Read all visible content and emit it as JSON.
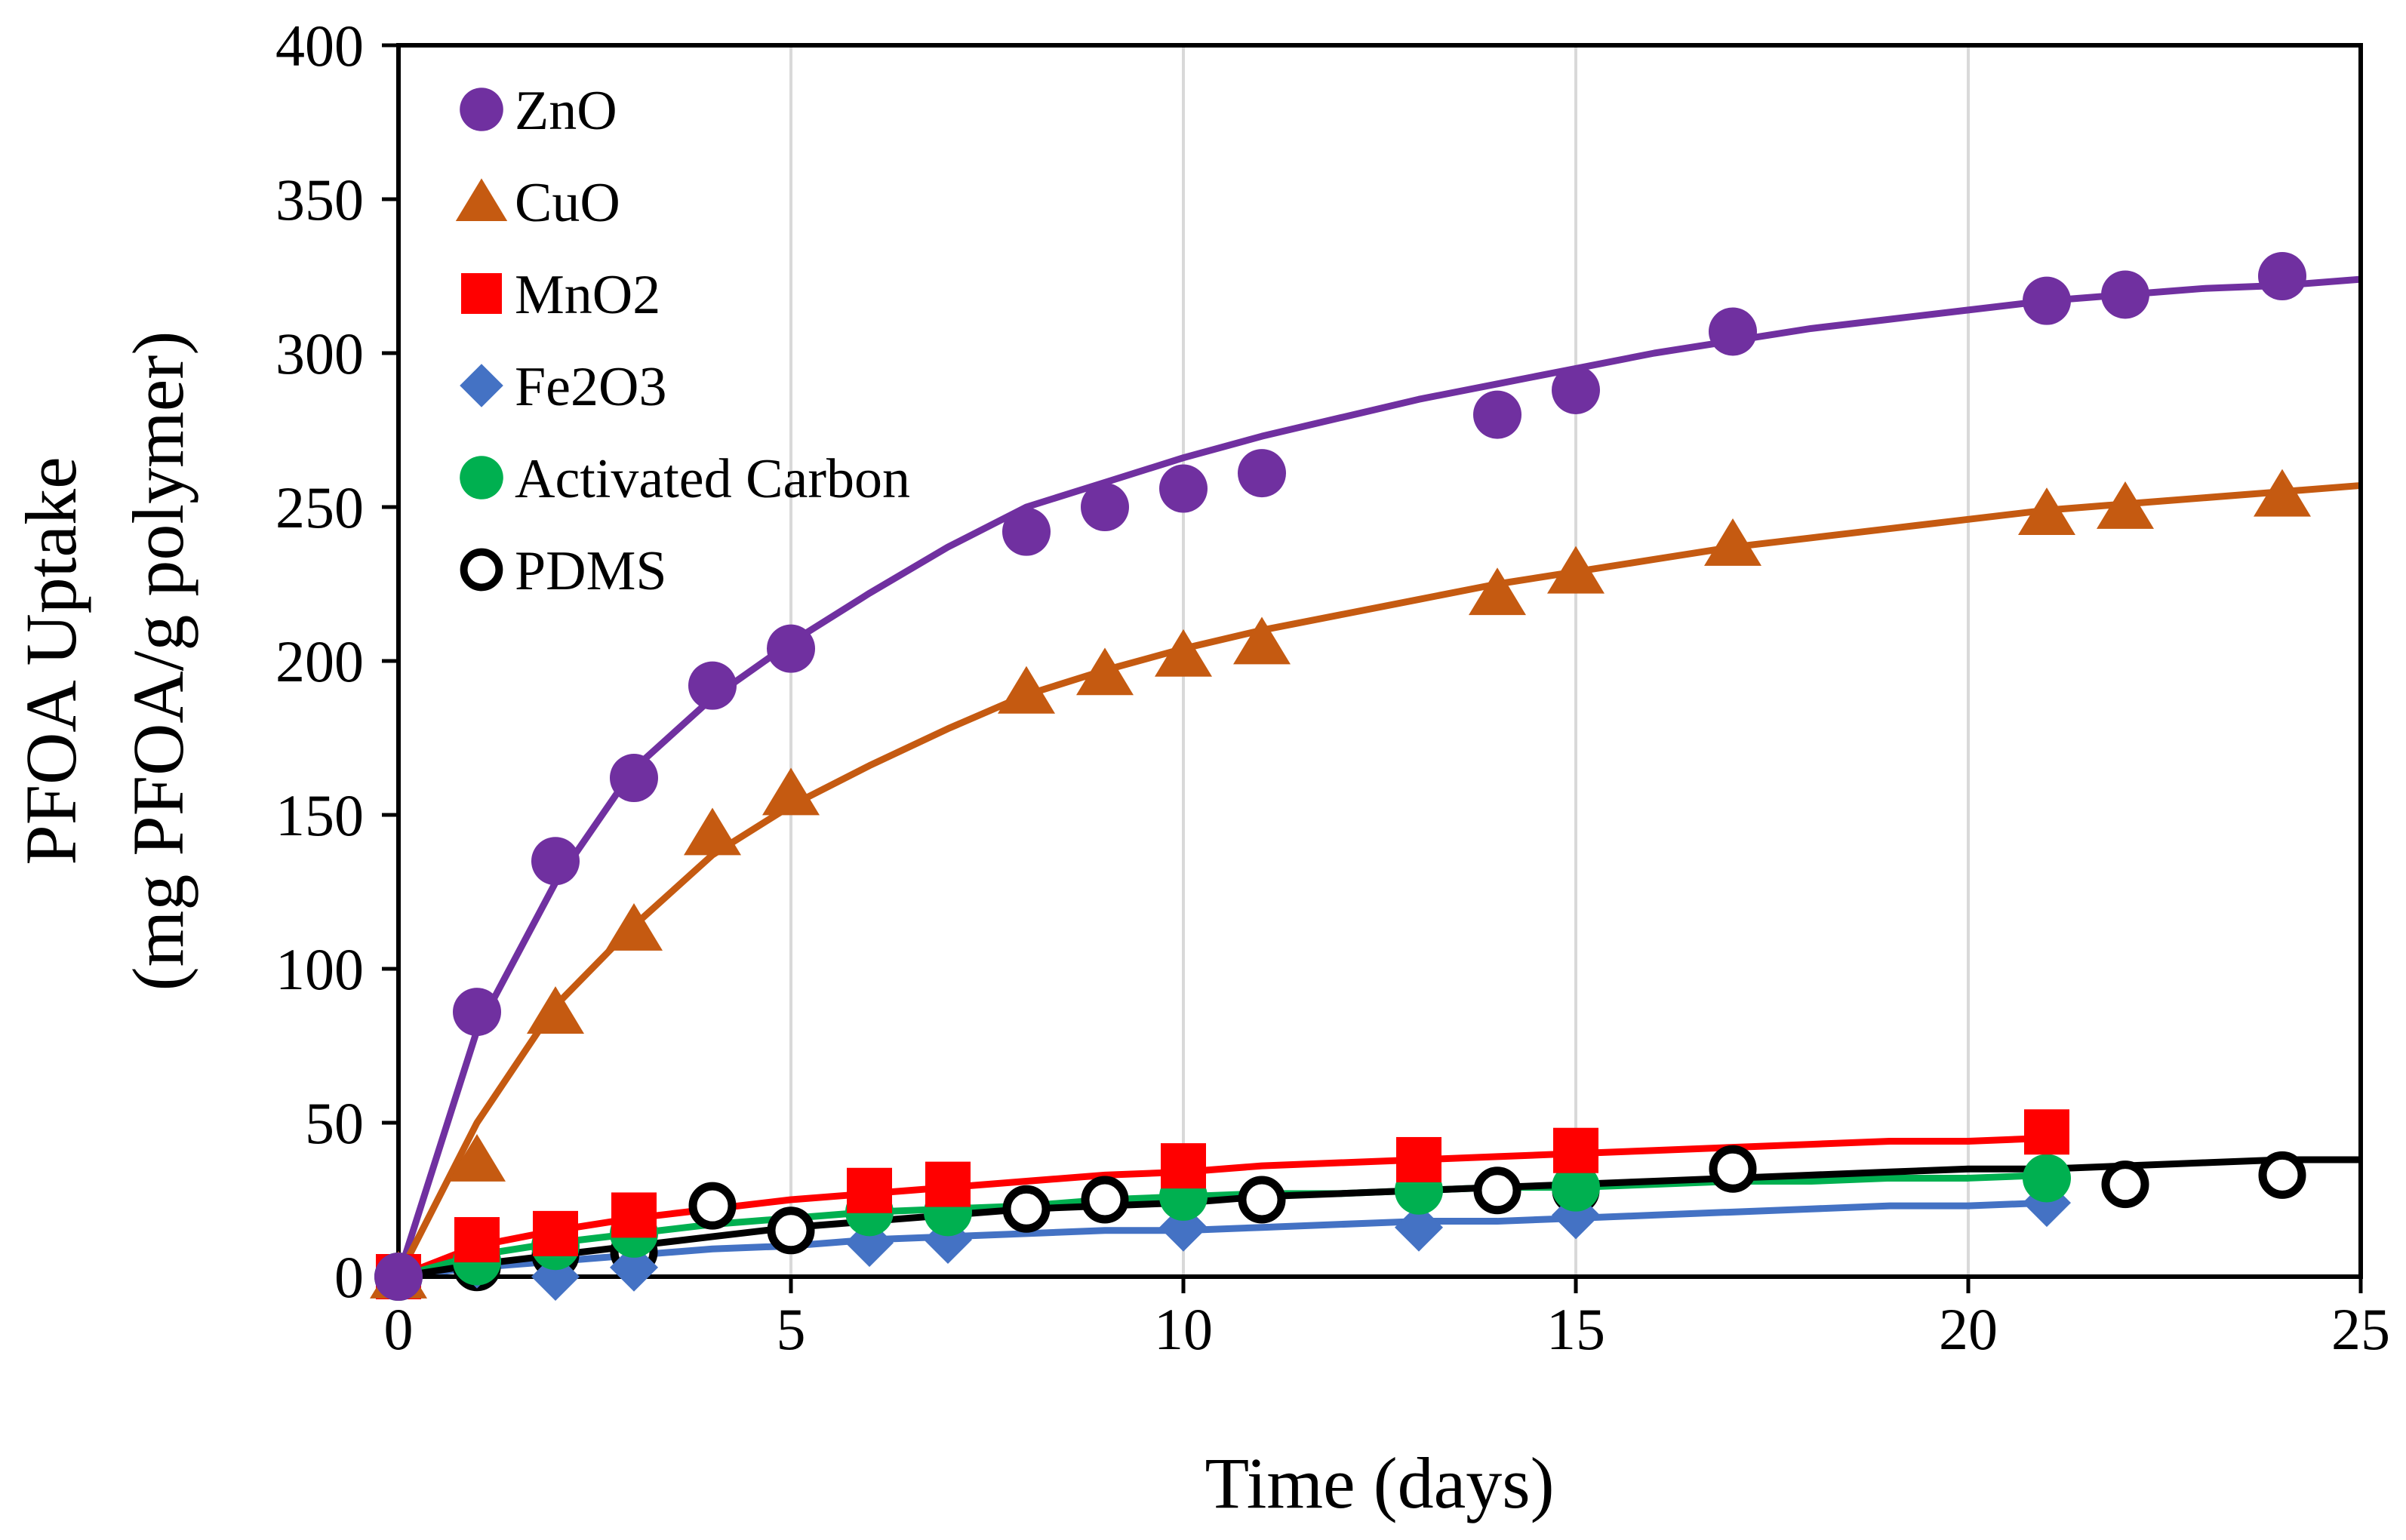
{
  "chart_data": {
    "type": "scatter",
    "title": "",
    "xlabel": "Time (days)",
    "ylabel_line1": "PFOA Uptake",
    "ylabel_line2": "(mg PFOA/g polymer)",
    "xlim": [
      0,
      25
    ],
    "ylim": [
      0,
      400
    ],
    "xticks": [
      0,
      5,
      10,
      15,
      20,
      25
    ],
    "yticks": [
      0,
      50,
      100,
      150,
      200,
      250,
      300,
      350,
      400
    ],
    "grid": "vertical",
    "legend_position": "top-left",
    "series": [
      {
        "name": "ZnO",
        "color": "#7030A0",
        "marker": "circle",
        "x": [
          0,
          1,
          2,
          3,
          4,
          5,
          8,
          9,
          10,
          11,
          14,
          15,
          17,
          21,
          22,
          24
        ],
        "y": [
          0,
          86,
          135,
          162,
          192,
          204,
          242,
          250,
          256,
          261,
          280,
          288,
          307,
          317,
          319,
          325
        ],
        "fit_x": [
          0,
          1,
          2,
          3,
          4,
          5,
          6,
          7,
          8,
          9,
          10,
          11,
          12,
          13,
          14,
          15,
          16,
          17,
          18,
          19,
          20,
          21,
          22,
          23,
          24,
          25
        ],
        "fit_y": [
          0,
          80,
          128,
          165,
          188,
          206,
          222,
          237,
          250,
          258,
          266,
          273,
          279,
          285,
          290,
          295,
          300,
          304,
          308,
          311,
          314,
          317,
          319,
          321,
          322,
          324
        ]
      },
      {
        "name": "CuO",
        "color": "#C55A11",
        "marker": "triangle",
        "x": [
          0,
          1,
          2,
          3,
          4,
          5,
          8,
          9,
          10,
          11,
          14,
          15,
          17,
          21,
          22,
          24
        ],
        "y": [
          0,
          38,
          86,
          113,
          144,
          157,
          190,
          196,
          202,
          206,
          222,
          229,
          238,
          248,
          250,
          254
        ],
        "fit_x": [
          0,
          1,
          2,
          3,
          4,
          5,
          6,
          7,
          8,
          9,
          10,
          11,
          12,
          13,
          14,
          15,
          16,
          17,
          18,
          19,
          20,
          21,
          22,
          23,
          24,
          25
        ],
        "fit_y": [
          0,
          50,
          88,
          114,
          137,
          153,
          166,
          178,
          189,
          197,
          204,
          210,
          215,
          220,
          225,
          229,
          233,
          237,
          240,
          243,
          246,
          249,
          251,
          253,
          255,
          257
        ]
      },
      {
        "name": "MnO2",
        "color": "#FF0000",
        "marker": "square",
        "x": [
          0,
          1,
          2,
          3,
          6,
          7,
          10,
          13,
          15,
          21
        ],
        "y": [
          0,
          12,
          14,
          20,
          28,
          30,
          36,
          38,
          41,
          47
        ],
        "fit_x": [
          0,
          1,
          2,
          3,
          4,
          5,
          6,
          7,
          8,
          9,
          10,
          11,
          12,
          13,
          14,
          15,
          16,
          17,
          18,
          19,
          20,
          21
        ],
        "fit_y": [
          0,
          10,
          15,
          19,
          22,
          25,
          27,
          29,
          31,
          33,
          34,
          36,
          37,
          38,
          39,
          40,
          41,
          42,
          43,
          44,
          44,
          45
        ]
      },
      {
        "name": "Fe2O3",
        "color": "#4472C4",
        "marker": "diamond",
        "x": [
          0,
          1,
          2,
          3,
          6,
          7,
          10,
          13,
          15,
          21
        ],
        "y": [
          0,
          4,
          0,
          3,
          11,
          12,
          16,
          16,
          20,
          24
        ],
        "fit_x": [
          0,
          1,
          2,
          3,
          4,
          5,
          6,
          7,
          8,
          9,
          10,
          11,
          12,
          13,
          14,
          15,
          16,
          17,
          18,
          19,
          20,
          21
        ],
        "fit_y": [
          0,
          3,
          5,
          7,
          9,
          10,
          12,
          13,
          14,
          15,
          15,
          16,
          17,
          18,
          18,
          19,
          20,
          21,
          22,
          23,
          23,
          24
        ]
      },
      {
        "name": "Activated Carbon",
        "color": "#00B050",
        "marker": "circle",
        "x": [
          0,
          1,
          2,
          3,
          6,
          7,
          10,
          13,
          15,
          21
        ],
        "y": [
          0,
          5,
          10,
          14,
          21,
          21,
          26,
          28,
          29,
          32
        ],
        "fit_x": [
          0,
          1,
          2,
          3,
          4,
          5,
          6,
          7,
          8,
          9,
          10,
          11,
          12,
          13,
          14,
          15,
          16,
          17,
          18,
          19,
          20,
          21
        ],
        "fit_y": [
          0,
          7,
          11,
          14,
          17,
          19,
          21,
          22,
          23,
          25,
          26,
          27,
          27,
          28,
          29,
          29,
          30,
          31,
          31,
          32,
          32,
          33
        ]
      },
      {
        "name": "PDMS",
        "color": "#000000",
        "marker": "open-circle",
        "x": [
          0,
          1,
          2,
          3,
          4,
          5,
          8,
          9,
          10,
          11,
          14,
          15,
          17,
          21,
          22,
          24
        ],
        "y": [
          0,
          3,
          7,
          8,
          23,
          15,
          22,
          25,
          26,
          25,
          28,
          28,
          35,
          32,
          30,
          33
        ],
        "fit_x": [
          0,
          1,
          2,
          3,
          4,
          5,
          6,
          7,
          8,
          9,
          10,
          11,
          12,
          13,
          14,
          15,
          16,
          17,
          18,
          19,
          20,
          21,
          22,
          23,
          24,
          25
        ],
        "fit_y": [
          0,
          4,
          7,
          10,
          13,
          16,
          18,
          20,
          22,
          23,
          24,
          26,
          27,
          28,
          29,
          30,
          31,
          32,
          33,
          34,
          35,
          35,
          36,
          37,
          38,
          38
        ]
      }
    ]
  }
}
